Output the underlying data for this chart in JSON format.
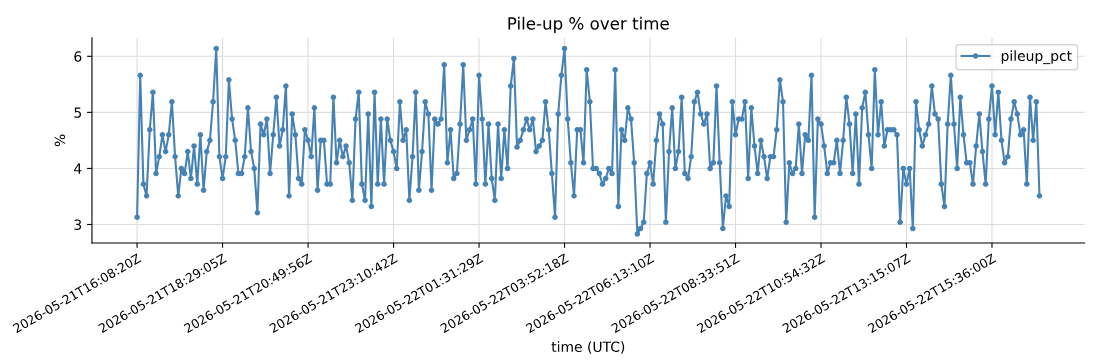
{
  "chart_data": {
    "type": "line",
    "title": "Pile-up % over time",
    "xlabel": "time (UTC)",
    "ylabel": "%",
    "categories": [
      "2026-05-21T16:08:20Z",
      null,
      null,
      null,
      null,
      null,
      null,
      null,
      null,
      null,
      null,
      null,
      null,
      null,
      null,
      null,
      null,
      null,
      null,
      null,
      null,
      null,
      null,
      null,
      null,
      null,
      null,
      "2026-05-21T18:29:05Z",
      null,
      null,
      null,
      null,
      null,
      null,
      null,
      null,
      null,
      null,
      null,
      null,
      null,
      null,
      null,
      null,
      null,
      null,
      null,
      null,
      null,
      null,
      null,
      null,
      null,
      null,
      "2026-05-21T20:49:56Z",
      null,
      null,
      null,
      null,
      null,
      null,
      null,
      null,
      null,
      null,
      null,
      null,
      null,
      null,
      null,
      null,
      null,
      null,
      null,
      null,
      null,
      null,
      null,
      null,
      null,
      null,
      "2026-05-21T23:10:42Z",
      null,
      null,
      null,
      null,
      null,
      null,
      null,
      null,
      null,
      null,
      null,
      null,
      null,
      null,
      null,
      null,
      null,
      null,
      null,
      null,
      null,
      null,
      null,
      null,
      null,
      null,
      "2026-05-22T01:31:29Z",
      null,
      null,
      null,
      null,
      null,
      null,
      null,
      null,
      null,
      null,
      null,
      null,
      null,
      null,
      null,
      null,
      null,
      null,
      null,
      null,
      null,
      null,
      null,
      null,
      null,
      null,
      "2026-05-22T03:52:18Z",
      null,
      null,
      null,
      null,
      null,
      null,
      null,
      null,
      null,
      null,
      null,
      null,
      null,
      null,
      null,
      null,
      null,
      null,
      null,
      null,
      null,
      null,
      null,
      null,
      null,
      null,
      "2026-05-22T06:13:10Z",
      null,
      null,
      null,
      null,
      null,
      null,
      null,
      null,
      null,
      null,
      null,
      null,
      null,
      null,
      null,
      null,
      null,
      null,
      null,
      null,
      null,
      null,
      null,
      null,
      null,
      null,
      "2026-05-22T08:33:51Z",
      null,
      null,
      null,
      null,
      null,
      null,
      null,
      null,
      null,
      null,
      null,
      null,
      null,
      null,
      null,
      null,
      null,
      null,
      null,
      null,
      null,
      null,
      null,
      null,
      null,
      null,
      "2026-05-22T10:54:32Z",
      null,
      null,
      null,
      null,
      null,
      null,
      null,
      null,
      null,
      null,
      null,
      null,
      null,
      null,
      null,
      null,
      null,
      null,
      null,
      null,
      null,
      null,
      null,
      null,
      null,
      null,
      "2026-05-22T13:15:07Z",
      null,
      null,
      null,
      null,
      null,
      null,
      null,
      null,
      null,
      null,
      null,
      null,
      null,
      null,
      null,
      null,
      null,
      null,
      null,
      null,
      null,
      null,
      null,
      null,
      null,
      null,
      "2026-05-22T15:36:00Z",
      null,
      null,
      null,
      null,
      null,
      null,
      null,
      null,
      null,
      null,
      null,
      null,
      null,
      null,
      null
    ],
    "series": [
      {
        "name": "pileup_pct",
        "color": "#4682b4",
        "values": [
          3.13,
          5.66,
          3.72,
          3.51,
          4.69,
          5.36,
          3.91,
          4.21,
          4.6,
          4.3,
          4.6,
          5.19,
          4.21,
          3.51,
          4.0,
          3.91,
          4.3,
          3.82,
          4.4,
          3.72,
          4.6,
          3.61,
          4.3,
          4.5,
          5.19,
          6.14,
          4.21,
          3.82,
          4.21,
          5.58,
          4.88,
          4.5,
          3.91,
          3.91,
          4.21,
          5.08,
          4.3,
          4.0,
          3.21,
          4.79,
          4.6,
          4.88,
          3.91,
          4.6,
          5.27,
          4.4,
          4.69,
          5.47,
          3.51,
          4.97,
          4.6,
          3.82,
          3.72,
          4.69,
          4.5,
          4.21,
          5.08,
          3.61,
          4.5,
          4.5,
          3.72,
          3.72,
          5.27,
          4.1,
          4.5,
          4.21,
          4.4,
          4.1,
          3.43,
          4.88,
          5.36,
          3.72,
          3.43,
          4.97,
          3.32,
          5.36,
          3.72,
          4.88,
          3.72,
          4.88,
          4.5,
          4.3,
          4.0,
          5.19,
          4.5,
          4.69,
          3.43,
          4.21,
          5.36,
          3.61,
          4.3,
          5.19,
          4.97,
          3.61,
          4.88,
          4.79,
          4.88,
          5.85,
          4.1,
          4.69,
          3.82,
          3.91,
          4.79,
          5.85,
          4.5,
          4.69,
          4.88,
          3.72,
          5.66,
          4.88,
          3.72,
          4.79,
          3.82,
          3.43,
          4.79,
          3.82,
          4.69,
          4.0,
          5.47,
          5.96,
          4.38,
          4.5,
          4.69,
          4.88,
          4.69,
          4.88,
          4.3,
          4.4,
          4.5,
          5.19,
          4.69,
          3.91,
          3.13,
          4.97,
          5.66,
          6.14,
          4.88,
          4.1,
          3.51,
          4.69,
          4.69,
          4.1,
          5.76,
          5.19,
          4.0,
          4.0,
          3.91,
          3.72,
          3.82,
          4.0,
          3.91,
          5.76,
          3.32,
          4.69,
          4.5,
          5.08,
          4.88,
          4.1,
          2.83,
          2.93,
          3.04,
          3.91,
          4.1,
          3.72,
          4.5,
          4.97,
          4.79,
          3.04,
          4.3,
          5.08,
          4.0,
          4.3,
          5.27,
          3.91,
          3.82,
          4.21,
          5.19,
          5.36,
          4.97,
          4.79,
          4.97,
          4.0,
          4.1,
          5.47,
          4.1,
          2.93,
          3.51,
          3.32,
          5.19,
          4.6,
          4.88,
          4.88,
          5.19,
          3.82,
          5.08,
          4.4,
          3.91,
          4.5,
          4.21,
          3.82,
          4.21,
          4.21,
          4.69,
          5.58,
          5.19,
          3.04,
          4.1,
          3.91,
          4.0,
          4.79,
          3.91,
          4.6,
          4.5,
          5.66,
          3.13,
          4.88,
          4.79,
          4.4,
          3.91,
          4.1,
          4.1,
          4.5,
          3.91,
          4.5,
          5.27,
          4.79,
          3.91,
          4.97,
          3.72,
          5.08,
          5.36,
          4.6,
          4.0,
          5.76,
          4.6,
          5.19,
          4.4,
          4.69,
          4.69,
          4.69,
          4.6,
          3.04,
          4.0,
          3.72,
          4.0,
          2.93,
          5.19,
          4.69,
          4.4,
          4.6,
          4.79,
          5.47,
          4.97,
          4.88,
          3.72,
          3.32,
          4.79,
          5.66,
          4.79,
          4.0,
          5.27,
          4.6,
          4.1,
          4.1,
          3.72,
          4.4,
          4.97,
          4.3,
          3.72,
          4.88,
          5.47,
          4.6,
          5.36,
          4.5,
          4.1,
          4.21,
          4.88,
          5.19,
          4.97,
          4.6,
          4.69,
          3.72,
          5.27,
          4.5,
          5.19,
          3.51
        ]
      }
    ],
    "ylim": [
      2.67,
      6.33
    ],
    "yticks": [
      3,
      4,
      5,
      6
    ],
    "grid": true,
    "legend": "top right",
    "marker": "circle",
    "line_style": "solid"
  }
}
